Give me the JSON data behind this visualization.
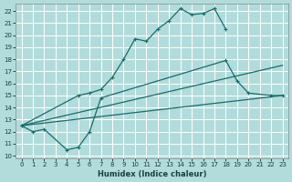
{
  "xlabel": "Humidex (Indice chaleur)",
  "xlim": [
    -0.5,
    23.5
  ],
  "ylim": [
    9.8,
    22.6
  ],
  "yticks": [
    10,
    11,
    12,
    13,
    14,
    15,
    16,
    17,
    18,
    19,
    20,
    21,
    22
  ],
  "xticks": [
    0,
    1,
    2,
    3,
    4,
    5,
    6,
    7,
    8,
    9,
    10,
    11,
    12,
    13,
    14,
    15,
    16,
    17,
    18,
    19,
    20,
    21,
    22,
    23
  ],
  "bg_color": "#b2dcdc",
  "grid_color": "#ffffff",
  "line_color": "#1a6b6b",
  "segments": [
    {
      "x": [
        0,
        1,
        2
      ],
      "y": [
        12.5,
        12.0,
        12.2
      ],
      "marker": true
    },
    {
      "x": [
        3,
        4,
        5,
        6,
        7
      ],
      "y": [
        null,
        10.5,
        10.7,
        12.0,
        14.8
      ],
      "marker": true
    },
    {
      "x": [
        4,
        5,
        6,
        7
      ],
      "y": [
        10.5,
        10.7,
        12.0,
        14.8
      ],
      "marker": true
    },
    {
      "x": [
        18,
        19,
        20,
        22,
        23
      ],
      "y": [
        17.9,
        16.2,
        15.2,
        15.0,
        15.0
      ],
      "marker": true
    },
    {
      "x": [
        0,
        5,
        6,
        7,
        8,
        9,
        10,
        11,
        12,
        13,
        14,
        15,
        16,
        17,
        18
      ],
      "y": [
        12.5,
        15.0,
        15.2,
        15.5,
        16.5,
        18.0,
        19.7,
        19.5,
        20.5,
        21.2,
        22.2,
        21.7,
        21.8,
        22.2,
        20.5
      ],
      "marker": true
    },
    {
      "x": [
        0,
        23
      ],
      "y": [
        12.5,
        15.0
      ],
      "marker": false
    },
    {
      "x": [
        0,
        23
      ],
      "y": [
        12.5,
        17.5
      ],
      "marker": false
    }
  ]
}
